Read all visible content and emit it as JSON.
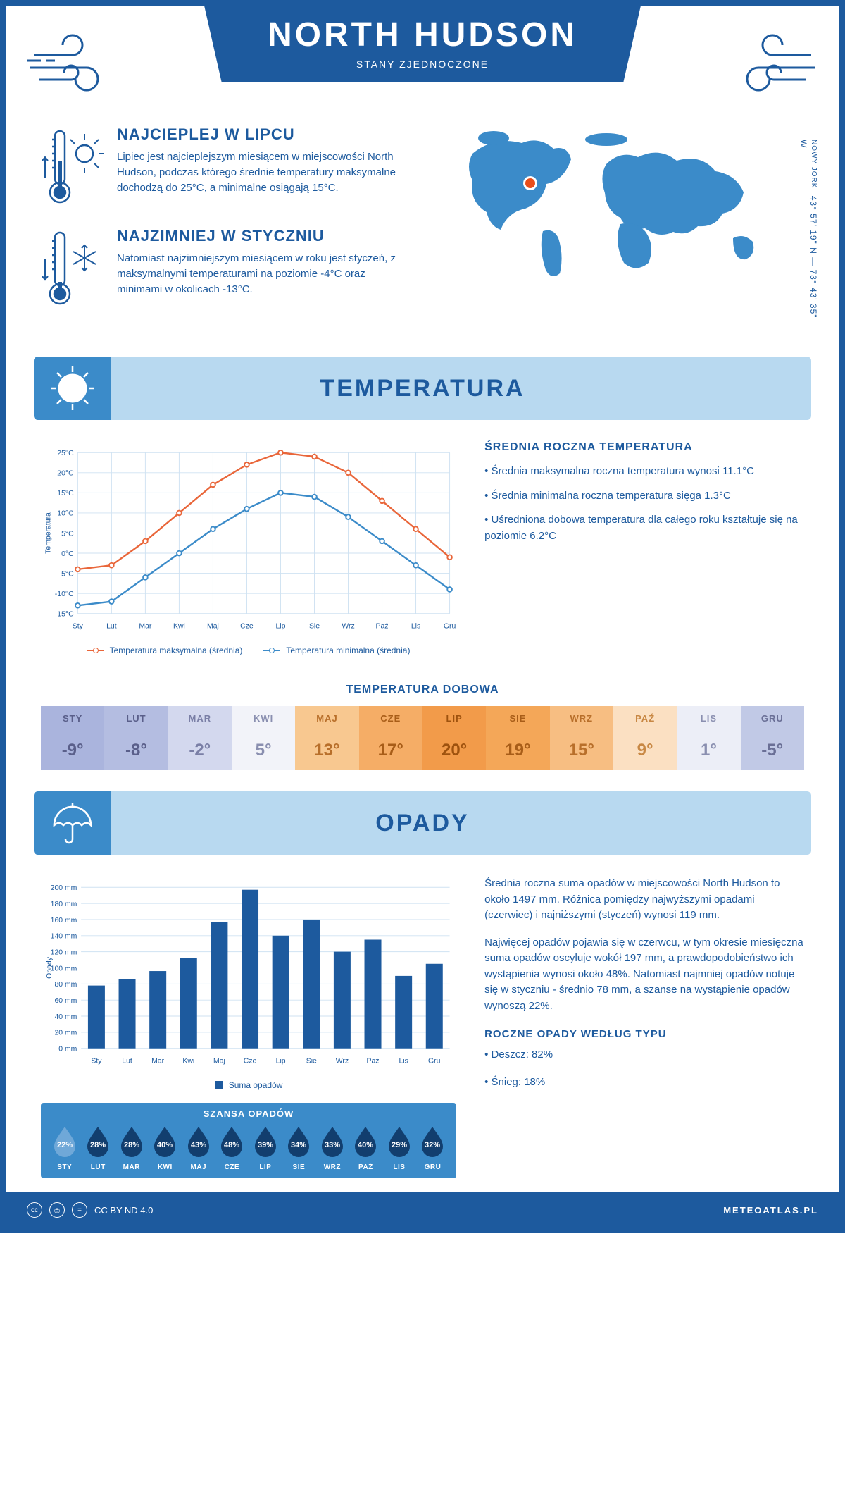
{
  "header": {
    "title": "NORTH HUDSON",
    "subtitle": "STANY ZJEDNOCZONE"
  },
  "location": {
    "state": "NOWY JORK",
    "coords": "43° 57' 19\" N — 73° 43' 35\" W",
    "marker_color": "#e94e1b"
  },
  "facts": {
    "warm": {
      "title": "NAJCIEPLEJ W LIPCU",
      "text": "Lipiec jest najcieplejszym miesiącem w miejscowości North Hudson, podczas którego średnie temperatury maksymalne dochodzą do 25°C, a minimalne osiągają 15°C."
    },
    "cold": {
      "title": "NAJZIMNIEJ W STYCZNIU",
      "text": "Natomiast najzimniejszym miesiącem w roku jest styczeń, z maksymalnymi temperaturami na poziomie -4°C oraz minimami w okolicach -13°C."
    }
  },
  "colors": {
    "primary": "#1d5a9e",
    "light_blue": "#b8d9f0",
    "mid_blue": "#3b8bc9",
    "chart_max": "#e9663a",
    "chart_min": "#3b8bc9",
    "grid": "#cfe2f2"
  },
  "temp_section": {
    "title": "TEMPERATURA",
    "info_title": "ŚREDNIA ROCZNA TEMPERATURA",
    "bullets": [
      "• Średnia maksymalna roczna temperatura wynosi 11.1°C",
      "• Średnia minimalna roczna temperatura sięga 1.3°C",
      "• Uśredniona dobowa temperatura dla całego roku kształtuje się na poziomie 6.2°C"
    ],
    "chart": {
      "type": "line",
      "months": [
        "Sty",
        "Lut",
        "Mar",
        "Kwi",
        "Maj",
        "Cze",
        "Lip",
        "Sie",
        "Wrz",
        "Paź",
        "Lis",
        "Gru"
      ],
      "max_series": [
        -4,
        -3,
        3,
        10,
        17,
        22,
        25,
        24,
        20,
        13,
        6,
        -1
      ],
      "min_series": [
        -13,
        -12,
        -6,
        0,
        6,
        11,
        15,
        14,
        9,
        3,
        -3,
        -9
      ],
      "ylim": [
        -15,
        25
      ],
      "ytick_step": 5,
      "y_label": "Temperatura",
      "y_suffix": "°C",
      "legend_max": "Temperatura maksymalna (średnia)",
      "legend_min": "Temperatura minimalna (średnia)"
    },
    "daily": {
      "title": "TEMPERATURA DOBOWA",
      "months": [
        "STY",
        "LUT",
        "MAR",
        "KWI",
        "MAJ",
        "CZE",
        "LIP",
        "SIE",
        "WRZ",
        "PAŹ",
        "LIS",
        "GRU"
      ],
      "values": [
        "-9°",
        "-8°",
        "-2°",
        "5°",
        "13°",
        "17°",
        "20°",
        "19°",
        "15°",
        "9°",
        "1°",
        "-5°"
      ],
      "bg_colors": [
        "#aab4dd",
        "#b4bde1",
        "#d3d8ee",
        "#f2f3f9",
        "#f8c890",
        "#f5ad66",
        "#f29b4a",
        "#f4a758",
        "#f7be82",
        "#fbe0c2",
        "#eceef7",
        "#c1c9e6"
      ],
      "text_colors": [
        "#5a5f8a",
        "#5a5f8a",
        "#7a7fa6",
        "#8a8fb0",
        "#b86f2a",
        "#a85d18",
        "#9e520e",
        "#a85d18",
        "#b86f2a",
        "#c88844",
        "#8a8fb0",
        "#6a6f96"
      ]
    }
  },
  "opady_section": {
    "title": "OPADY",
    "paras": [
      "Średnia roczna suma opadów w miejscowości North Hudson to około 1497 mm. Różnica pomiędzy najwyższymi opadami (czerwiec) i najniższymi (styczeń) wynosi 119 mm.",
      "Najwięcej opadów pojawia się w czerwcu, w tym okresie miesięczna suma opadów oscyluje wokół 197 mm, a prawdopodobieństwo ich wystąpienia wynosi około 48%. Natomiast najmniej opadów notuje się w styczniu - średnio 78 mm, a szanse na wystąpienie opadów wynoszą 22%."
    ],
    "type_title": "ROCZNE OPADY WEDŁUG TYPU",
    "type_bullets": [
      "• Deszcz: 82%",
      "• Śnieg: 18%"
    ],
    "chart": {
      "type": "bar",
      "months": [
        "Sty",
        "Lut",
        "Mar",
        "Kwi",
        "Maj",
        "Cze",
        "Lip",
        "Sie",
        "Wrz",
        "Paź",
        "Lis",
        "Gru"
      ],
      "values": [
        78,
        86,
        96,
        112,
        157,
        197,
        140,
        160,
        120,
        135,
        90,
        105
      ],
      "ylim": [
        0,
        200
      ],
      "ytick_step": 20,
      "y_label": "Opady",
      "y_suffix": " mm",
      "legend": "Suma opadów",
      "bar_color": "#1d5a9e"
    },
    "szansa": {
      "title": "SZANSA OPADÓW",
      "months": [
        "STY",
        "LUT",
        "MAR",
        "KWI",
        "MAJ",
        "CZE",
        "LIP",
        "SIE",
        "WRZ",
        "PAŹ",
        "LIS",
        "GRU"
      ],
      "pcts": [
        "22%",
        "28%",
        "28%",
        "40%",
        "43%",
        "48%",
        "39%",
        "34%",
        "33%",
        "40%",
        "29%",
        "32%"
      ],
      "light_drop_index": 0,
      "drop_dark": "#123e6e",
      "drop_light": "#6fa8d8"
    }
  },
  "footer": {
    "license": "CC BY-ND 4.0",
    "site": "METEOATLAS.PL"
  }
}
